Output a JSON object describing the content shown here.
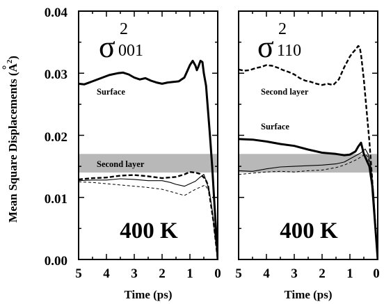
{
  "chart_data": {
    "type": "line",
    "ylabel_main": "Mean Square Displacements (",
    "ylabel_unit": "A",
    "ylabel_unit_sup": "2",
    "ylabel_close": ")",
    "ylim": [
      0.0,
      0.04
    ],
    "y_ticks": [
      "0.00",
      "0.01",
      "0.02",
      "0.03",
      "0.04"
    ],
    "band_color": "#b8b8b8",
    "panels": [
      {
        "sigma": "σ",
        "sup": "2",
        "sub": "001",
        "xlabel": "Time (ps)",
        "xlim": [
          5,
          0
        ],
        "x_ticks": [
          "5",
          "4",
          "3",
          "2",
          "1",
          "0"
        ],
        "temperature": "400 K",
        "band": [
          0.014,
          0.017
        ],
        "annotations": {
          "surface": "Surface",
          "second": "Second layer"
        },
        "series": [
          {
            "style": "thick-solid",
            "x": [
              5.0,
              4.8,
              4.5,
              4.2,
              3.9,
              3.6,
              3.4,
              3.2,
              3.0,
              2.8,
              2.6,
              2.4,
              2.2,
              2.0,
              1.8,
              1.6,
              1.4,
              1.2,
              1.1,
              1.0,
              0.9,
              0.8,
              0.75,
              0.7,
              0.62,
              0.55,
              0.5,
              0.42,
              0.35,
              0.28,
              0.2,
              0.12,
              0.05,
              0.0
            ],
            "y": [
              0.0283,
              0.0282,
              0.0287,
              0.0292,
              0.0297,
              0.03,
              0.0301,
              0.0298,
              0.0293,
              0.029,
              0.0292,
              0.0288,
              0.0285,
              0.0283,
              0.0285,
              0.0286,
              0.0287,
              0.0293,
              0.0303,
              0.0313,
              0.032,
              0.0312,
              0.0305,
              0.031,
              0.032,
              0.0318,
              0.03,
              0.028,
              0.024,
              0.02,
              0.015,
              0.009,
              0.004,
              0.0
            ]
          },
          {
            "style": "dashed",
            "x": [
              5.0,
              4.5,
              4.0,
              3.5,
              3.0,
              2.5,
              2.0,
              1.5,
              1.2,
              1.0,
              0.8,
              0.65,
              0.55,
              0.45,
              0.35,
              0.25,
              0.15,
              0.05,
              0.0
            ],
            "y": [
              0.0129,
              0.0131,
              0.0132,
              0.0135,
              0.0136,
              0.0134,
              0.0131,
              0.0133,
              0.0137,
              0.0141,
              0.014,
              0.0138,
              0.0134,
              0.013,
              0.012,
              0.009,
              0.006,
              0.002,
              0.0
            ]
          },
          {
            "style": "thin-solid",
            "x": [
              5.0,
              4.5,
              4.0,
              3.5,
              3.0,
              2.5,
              2.0,
              1.7,
              1.5,
              1.2,
              1.0,
              0.8,
              0.65,
              0.5,
              0.4,
              0.3,
              0.2,
              0.1,
              0.0
            ],
            "y": [
              0.0127,
              0.0128,
              0.0128,
              0.013,
              0.0129,
              0.0127,
              0.0127,
              0.0124,
              0.0121,
              0.0118,
              0.0122,
              0.0126,
              0.0132,
              0.0137,
              0.0125,
              0.011,
              0.008,
              0.004,
              0.0
            ]
          },
          {
            "style": "thin-dashed",
            "x": [
              5.0,
              4.5,
              4.0,
              3.5,
              3.0,
              2.5,
              2.0,
              1.5,
              1.2,
              1.0,
              0.8,
              0.6,
              0.45,
              0.3,
              0.2,
              0.1,
              0.0
            ],
            "y": [
              0.0125,
              0.0124,
              0.0122,
              0.012,
              0.0118,
              0.0116,
              0.0113,
              0.0107,
              0.0103,
              0.0108,
              0.0113,
              0.0117,
              0.012,
              0.0108,
              0.008,
              0.004,
              0.0
            ]
          }
        ]
      },
      {
        "sigma": "σ",
        "sup": "2",
        "sub": "110",
        "xlabel": "Time (ps)",
        "xlim": [
          5,
          0
        ],
        "x_ticks": [
          "5",
          "4",
          "3",
          "2",
          "1",
          "0"
        ],
        "temperature": "400 K",
        "band": [
          0.014,
          0.017
        ],
        "annotations": {
          "second": "Second layer",
          "surface": "Surface"
        },
        "series": [
          {
            "style": "dashed",
            "x": [
              5.0,
              4.8,
              4.6,
              4.4,
              4.2,
              4.0,
              3.8,
              3.6,
              3.4,
              3.2,
              3.0,
              2.8,
              2.6,
              2.4,
              2.2,
              2.0,
              1.8,
              1.6,
              1.4,
              1.2,
              1.0,
              0.9,
              0.8,
              0.7,
              0.65,
              0.6,
              0.5,
              0.4,
              0.3,
              0.2,
              0.1,
              0.0
            ],
            "y": [
              0.0306,
              0.0304,
              0.0305,
              0.0308,
              0.031,
              0.0313,
              0.0312,
              0.0309,
              0.0305,
              0.0302,
              0.0298,
              0.0292,
              0.0288,
              0.0286,
              0.0283,
              0.0281,
              0.0283,
              0.0281,
              0.029,
              0.031,
              0.0327,
              0.0333,
              0.0338,
              0.0344,
              0.0342,
              0.033,
              0.029,
              0.024,
              0.019,
              0.013,
              0.006,
              0.0
            ]
          },
          {
            "style": "thick-solid",
            "x": [
              5.0,
              4.5,
              4.0,
              3.5,
              3.0,
              2.5,
              2.0,
              1.5,
              1.2,
              1.0,
              0.8,
              0.7,
              0.6,
              0.5,
              0.4,
              0.3,
              0.2,
              0.1,
              0.0
            ],
            "y": [
              0.0194,
              0.0193,
              0.019,
              0.0186,
              0.0183,
              0.0177,
              0.0172,
              0.017,
              0.0168,
              0.0169,
              0.0174,
              0.0182,
              0.0188,
              0.017,
              0.016,
              0.015,
              0.012,
              0.006,
              0.0
            ]
          },
          {
            "style": "thin-solid",
            "x": [
              5.0,
              4.5,
              4.0,
              3.5,
              3.0,
              2.5,
              2.0,
              1.5,
              1.2,
              1.0,
              0.8,
              0.6,
              0.45,
              0.35,
              0.25,
              0.15,
              0.05,
              0.0
            ],
            "y": [
              0.0143,
              0.0142,
              0.0146,
              0.0149,
              0.015,
              0.0151,
              0.0152,
              0.0154,
              0.0157,
              0.0162,
              0.0167,
              0.0172,
              0.0178,
              0.017,
              0.015,
              0.011,
              0.004,
              0.0
            ]
          },
          {
            "style": "thin-dashed",
            "x": [
              5.0,
              4.5,
              4.0,
              3.5,
              3.0,
              2.5,
              2.0,
              1.5,
              1.2,
              1.0,
              0.8,
              0.6,
              0.45,
              0.35,
              0.25,
              0.15,
              0.05,
              0.0
            ],
            "y": [
              0.0137,
              0.0139,
              0.0141,
              0.0142,
              0.0141,
              0.0143,
              0.0144,
              0.0148,
              0.0152,
              0.0156,
              0.016,
              0.0165,
              0.017,
              0.0165,
              0.014,
              0.01,
              0.004,
              0.0
            ]
          }
        ]
      }
    ]
  }
}
